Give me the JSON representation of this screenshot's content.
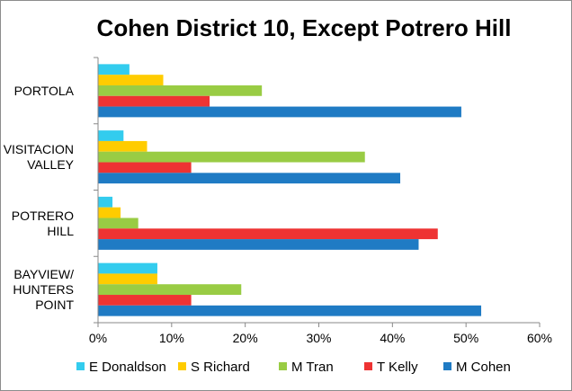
{
  "chart_data": {
    "type": "bar",
    "orientation": "horizontal",
    "title": "Cohen District 10, Except Potrero Hill",
    "xlabel": "",
    "ylabel": "",
    "categories": [
      [
        "PORTOLA"
      ],
      [
        "VISITACION",
        "VALLEY"
      ],
      [
        "POTRERO",
        "HILL"
      ],
      [
        "BAYVIEW/",
        "HUNTERS",
        "POINT"
      ]
    ],
    "series": [
      {
        "name": "E Donaldson",
        "color": "#33ccee",
        "values": [
          4.2,
          3.4,
          1.9,
          8.0
        ]
      },
      {
        "name": "S Richard",
        "color": "#ffcc00",
        "values": [
          8.8,
          6.6,
          3.0,
          8.0
        ]
      },
      {
        "name": "M Tran",
        "color": "#99cc44",
        "values": [
          22.2,
          36.2,
          5.4,
          19.4
        ]
      },
      {
        "name": "T Kelly",
        "color": "#ee3333",
        "values": [
          15.1,
          12.6,
          46.1,
          12.6
        ]
      },
      {
        "name": "M Cohen",
        "color": "#1f7bc4",
        "values": [
          49.3,
          41.0,
          43.5,
          52.0
        ]
      }
    ],
    "xlim": [
      0,
      60
    ],
    "x_ticks": [
      "0%",
      "10%",
      "20%",
      "30%",
      "40%",
      "50%",
      "60%"
    ],
    "grid": false,
    "legend_position": "bottom"
  }
}
